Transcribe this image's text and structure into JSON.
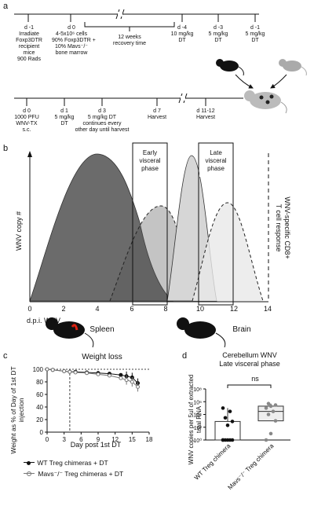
{
  "panels": {
    "a": "a",
    "b": "b",
    "c": "c",
    "d": "d"
  },
  "panel_a": {
    "top_timeline": [
      {
        "day": "d -1",
        "text": [
          "Irradiate",
          "Foxp3DTR",
          "recipient",
          "mice",
          "900 Rads"
        ]
      },
      {
        "day": "d 0",
        "text": [
          "4-5x10⁶ cells",
          "90% Foxp3DTR +",
          "10% Mavs⁻/⁻",
          "bone marrow"
        ]
      },
      {
        "day": "",
        "text": [
          "12 weeks",
          "recovery time"
        ]
      },
      {
        "day": "d -4",
        "text": [
          "10 mg/kg",
          "DT"
        ]
      },
      {
        "day": "d -3",
        "text": [
          "5 mg/kg",
          "DT"
        ]
      },
      {
        "day": "d -1",
        "text": [
          "5 mg/kg",
          "DT"
        ]
      }
    ],
    "bottom_timeline": [
      {
        "day": "d 0",
        "text": [
          "1000 PFU",
          "WNV-TX",
          "s.c."
        ]
      },
      {
        "day": "d 1",
        "text": [
          "5 mg/kg",
          "DT"
        ]
      },
      {
        "day": "d 3",
        "text": [
          "5 mg/kg DT",
          "continues every",
          "other day until harvest"
        ]
      },
      {
        "day": "d 7",
        "text": [
          "Harvest"
        ]
      },
      {
        "day": "d 11-12",
        "text": [
          "Harvest"
        ]
      }
    ]
  },
  "panel_b": {
    "ylabel_left": "WNV copy #",
    "ylabel_right_1": "WNV-specific CD8+",
    "ylabel_right_2": "T cell response",
    "xlabel": "d.p.i. WNV",
    "xticks": [
      "0",
      "2",
      "4",
      "6",
      "8",
      "10",
      "12",
      "14"
    ],
    "box_early": [
      "Early",
      "visceral",
      "phase"
    ],
    "box_late": [
      "Late",
      "visceral",
      "phase"
    ],
    "organ_spleen": "Spleen",
    "organ_brain": "Brain"
  },
  "chart_data": [
    {
      "type": "line",
      "title": "Weight loss",
      "xlabel": "Day post 1st DT",
      "ylabel": "Weight as % of Day of 1st DT injection",
      "xlim": [
        0,
        18
      ],
      "ylim": [
        0,
        100
      ],
      "xticks": [
        "0",
        "3",
        "6",
        "9",
        "12",
        "15",
        "18"
      ],
      "yticks": [
        "0",
        "20",
        "40",
        "60",
        "80",
        "100"
      ],
      "series": [
        {
          "name": "WT Treg chimeras + DT",
          "x": [
            0,
            1,
            3,
            4,
            5,
            7,
            9,
            11,
            13,
            14,
            15,
            16
          ],
          "y": [
            100,
            99,
            97,
            96,
            96,
            95,
            94,
            93,
            91,
            89,
            87,
            78
          ]
        },
        {
          "name": "Mavs⁻/⁻ Treg chimeras + DT",
          "x": [
            0,
            1,
            3,
            4,
            5,
            7,
            9,
            11,
            13,
            14,
            15,
            16
          ],
          "y": [
            100,
            99,
            97,
            96,
            95,
            94,
            92,
            90,
            86,
            83,
            80,
            72
          ]
        }
      ]
    },
    {
      "type": "scatter",
      "title": "Cerebellum WNV",
      "subtitle": "Late visceral phase",
      "ylabel": "WNV copies per 5ul of extracted total RNA",
      "yscale": "log",
      "yticks": [
        "10⁰",
        "10²",
        "10⁴",
        "10⁶",
        "10⁸"
      ],
      "categories": [
        "WT Treg chimera",
        "Mavs⁻/⁻ Treg chimera"
      ],
      "significance": "ns",
      "series": [
        {
          "name": "WT Treg chimera",
          "values": [
            1,
            1,
            1,
            1,
            1,
            1,
            200,
            800,
            3000,
            30000,
            100000
          ]
        },
        {
          "name": "Mavs⁻/⁻ Treg chimera",
          "values": [
            1,
            10,
            1000,
            10000,
            30000,
            100000,
            200000,
            300000,
            500000
          ]
        }
      ]
    }
  ]
}
